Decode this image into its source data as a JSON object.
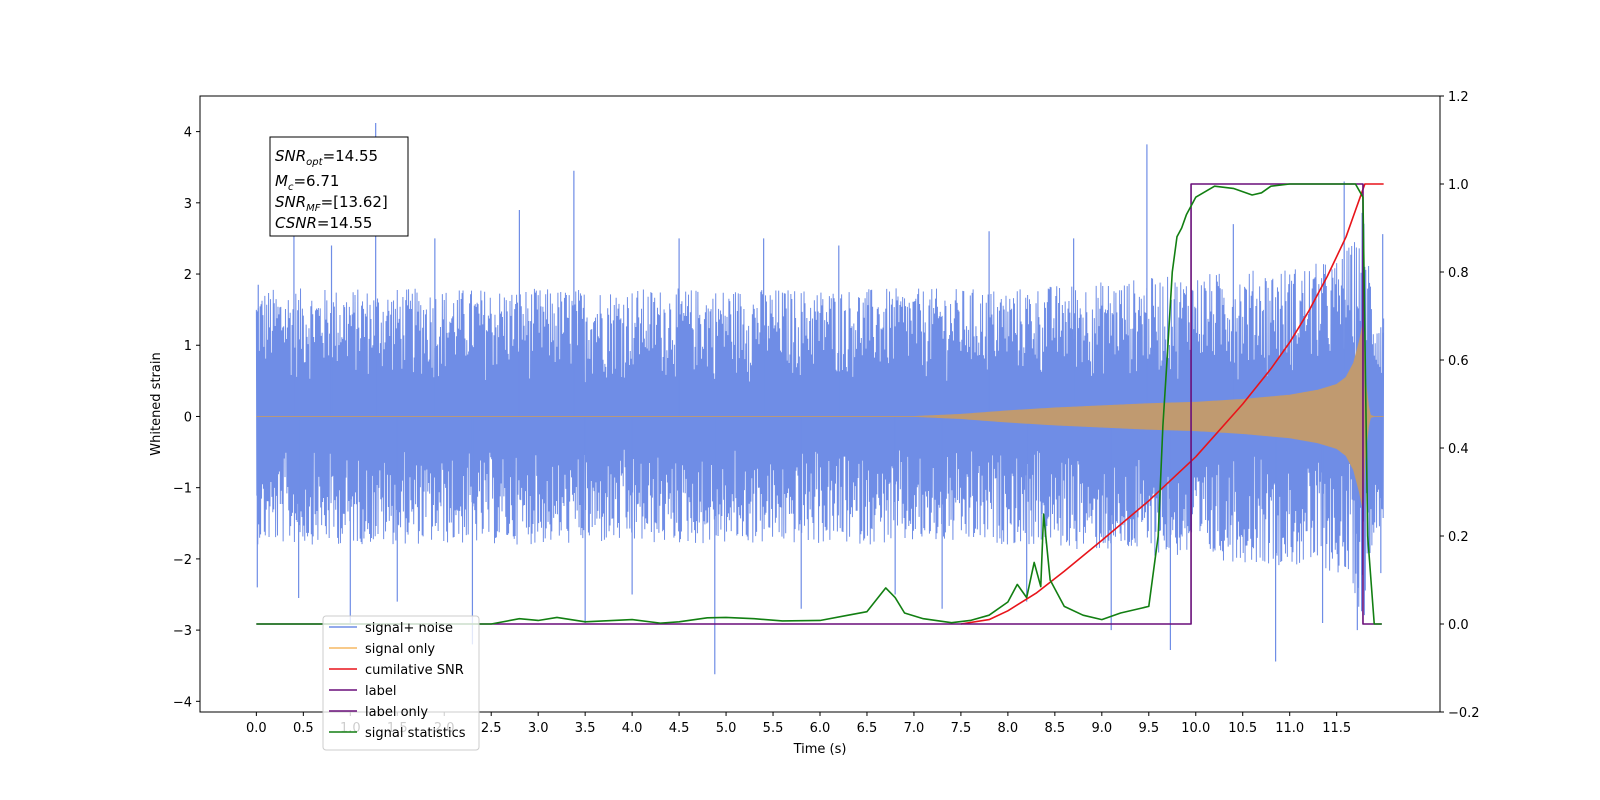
{
  "chart_data": {
    "type": "line",
    "xlabel": "Time (s)",
    "ylabel": "Whitened strain",
    "xlim": [
      -0.6,
      12.6
    ],
    "ylim": [
      -4.15,
      4.5
    ],
    "y2lim": [
      -0.2,
      1.2
    ],
    "x_ticks": [
      "0.0",
      "0.5",
      "1.0",
      "1.5",
      "2.0",
      "2.5",
      "3.0",
      "3.5",
      "4.0",
      "4.5",
      "5.0",
      "5.5",
      "6.0",
      "6.5",
      "7.0",
      "7.5",
      "8.0",
      "8.5",
      "9.0",
      "9.5",
      "10.0",
      "10.5",
      "11.0",
      "11.5"
    ],
    "y_ticks": [
      "4",
      "3",
      "2",
      "1",
      "0",
      "−1",
      "−2",
      "−3",
      "−4"
    ],
    "y2_ticks": [
      "1.2",
      "1.0",
      "0.8",
      "0.6",
      "0.4",
      "0.2",
      "0.0",
      "−0.2"
    ],
    "grid": false,
    "annotation": {
      "snr_opt": {
        "main": "SNR",
        "sub": "opt",
        "value": "=14.55"
      },
      "mc": {
        "main": "M",
        "sub": "c",
        "value": "=6.71"
      },
      "snr_mf": {
        "main": "SNR",
        "sub": "MF",
        "value": "=[13.62]"
      },
      "csnr": {
        "main": "CSNR",
        "value": "=14.55"
      }
    },
    "legend": {
      "placement": "lower-left",
      "entries": [
        {
          "label": "signal+ noise",
          "color": "#6f8de6"
        },
        {
          "label": "signal only",
          "color": "#f5b964"
        },
        {
          "label": "cumilative SNR",
          "color": "#e8141a"
        },
        {
          "label": "label",
          "color": "#6a0f7a"
        },
        {
          "label": "label only",
          "color": "#6a0f7a"
        },
        {
          "label": "signal statistics",
          "color": "#127f12"
        }
      ]
    },
    "series": [
      {
        "name": "signal+ noise",
        "axis": "left",
        "color": "#6f8de6",
        "noise_band": {
          "x": [
            0,
            7.5,
            8.0,
            9.0,
            10.0,
            11.0,
            11.5,
            11.7,
            11.78,
            11.9,
            12.0
          ],
          "lower": [
            -1.8,
            -1.8,
            -1.8,
            -1.9,
            -2.0,
            -2.1,
            -2.2,
            -2.5,
            -3.0,
            -1.6,
            -1.5
          ],
          "upper": [
            1.8,
            1.8,
            1.8,
            1.9,
            2.0,
            2.1,
            2.2,
            2.5,
            3.0,
            1.6,
            1.5
          ]
        },
        "spikes": [
          {
            "x": 0.01,
            "y": -2.4
          },
          {
            "x": 0.02,
            "y": 1.85
          },
          {
            "x": 1.27,
            "y": 4.12
          },
          {
            "x": 0.4,
            "y": 2.6
          },
          {
            "x": 0.45,
            "y": -2.55
          },
          {
            "x": 0.8,
            "y": 2.4
          },
          {
            "x": 1.0,
            "y": -2.9
          },
          {
            "x": 1.5,
            "y": -2.6
          },
          {
            "x": 1.9,
            "y": 2.5
          },
          {
            "x": 2.3,
            "y": -3.2
          },
          {
            "x": 2.8,
            "y": 2.9
          },
          {
            "x": 3.38,
            "y": 3.45
          },
          {
            "x": 3.5,
            "y": -2.9
          },
          {
            "x": 4.0,
            "y": -2.5
          },
          {
            "x": 4.5,
            "y": 2.5
          },
          {
            "x": 4.88,
            "y": -3.62
          },
          {
            "x": 5.4,
            "y": 2.5
          },
          {
            "x": 5.8,
            "y": -2.7
          },
          {
            "x": 6.2,
            "y": 2.4
          },
          {
            "x": 6.8,
            "y": -2.5
          },
          {
            "x": 7.3,
            "y": -2.7
          },
          {
            "x": 7.8,
            "y": 2.6
          },
          {
            "x": 8.2,
            "y": -2.6
          },
          {
            "x": 8.7,
            "y": 2.5
          },
          {
            "x": 9.1,
            "y": -3.0
          },
          {
            "x": 9.48,
            "y": 3.82
          },
          {
            "x": 9.73,
            "y": -3.28
          },
          {
            "x": 10.4,
            "y": 2.7
          },
          {
            "x": 10.85,
            "y": -3.44
          },
          {
            "x": 11.35,
            "y": -2.9
          },
          {
            "x": 11.58,
            "y": 3.3
          },
          {
            "x": 11.72,
            "y": -3.0
          },
          {
            "x": 11.99,
            "y": 2.56
          },
          {
            "x": 11.97,
            "y": -2.2
          }
        ]
      },
      {
        "name": "signal only",
        "axis": "left",
        "color": "#c09a70",
        "envelope": {
          "x": [
            0,
            7.0,
            7.5,
            8.0,
            8.5,
            9.0,
            9.5,
            10.0,
            10.5,
            11.0,
            11.3,
            11.5,
            11.6,
            11.68,
            11.74,
            11.78,
            11.8,
            11.85,
            11.9,
            12.0
          ],
          "amplitude": [
            0.0,
            0.0,
            0.03,
            0.08,
            0.12,
            0.15,
            0.18,
            0.2,
            0.24,
            0.3,
            0.37,
            0.45,
            0.55,
            0.75,
            1.05,
            1.3,
            0.6,
            0.02,
            0.0,
            0.0
          ]
        }
      },
      {
        "name": "cumilative SNR",
        "axis": "right",
        "color": "#e8141a",
        "x": [
          7.5,
          7.8,
          8.0,
          8.3,
          8.6,
          9.0,
          9.5,
          10.0,
          10.5,
          10.8,
          11.0,
          11.2,
          11.4,
          11.6,
          11.7,
          11.75,
          11.8,
          11.85,
          12.0
        ],
        "y": [
          0.0,
          0.01,
          0.03,
          0.07,
          0.12,
          0.19,
          0.28,
          0.38,
          0.5,
          0.58,
          0.64,
          0.71,
          0.79,
          0.88,
          0.94,
          0.97,
          1.0,
          1.0,
          1.0
        ]
      },
      {
        "name": "label",
        "axis": "right",
        "color": "#6a0f7a",
        "x": [
          0,
          9.95,
          9.95,
          11.78,
          11.78,
          11.98
        ],
        "y": [
          0,
          0,
          1,
          1,
          0,
          0
        ]
      },
      {
        "name": "signal statistics",
        "axis": "right",
        "color": "#127f12",
        "x": [
          0,
          2.5,
          2.8,
          3.0,
          3.2,
          3.5,
          4.0,
          4.3,
          4.5,
          4.8,
          5.0,
          5.3,
          5.6,
          6.0,
          6.3,
          6.5,
          6.7,
          6.8,
          6.9,
          7.1,
          7.4,
          7.6,
          7.8,
          8.0,
          8.1,
          8.2,
          8.28,
          8.35,
          8.38,
          8.45,
          8.6,
          8.8,
          9.0,
          9.2,
          9.4,
          9.5,
          9.6,
          9.65,
          9.7,
          9.75,
          9.8,
          9.85,
          9.9,
          9.95,
          10.0,
          10.2,
          10.4,
          10.6,
          10.7,
          10.8,
          11.0,
          11.5,
          11.7,
          11.78,
          11.83,
          11.9,
          11.98
        ],
        "y": [
          0.0,
          0.0,
          0.012,
          0.008,
          0.015,
          0.005,
          0.01,
          0.002,
          0.005,
          0.014,
          0.015,
          0.012,
          0.007,
          0.008,
          0.02,
          0.028,
          0.082,
          0.06,
          0.025,
          0.012,
          0.003,
          0.008,
          0.02,
          0.05,
          0.09,
          0.06,
          0.14,
          0.085,
          0.25,
          0.1,
          0.04,
          0.02,
          0.01,
          0.025,
          0.035,
          0.04,
          0.2,
          0.45,
          0.62,
          0.8,
          0.88,
          0.9,
          0.93,
          0.95,
          0.97,
          0.995,
          0.99,
          0.975,
          0.98,
          0.995,
          1.0,
          1.0,
          1.0,
          0.97,
          0.2,
          0.0,
          0.0
        ]
      }
    ]
  }
}
